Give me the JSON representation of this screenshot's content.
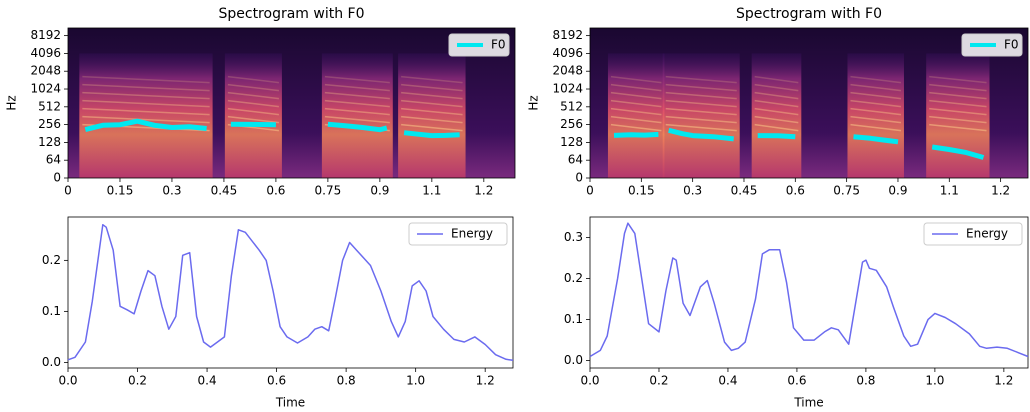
{
  "chart_data": [
    {
      "type": "spectrogram",
      "title": "Spectrogram with F0",
      "ylabel": "Hz",
      "xlim": [
        0,
        1.29
      ],
      "xticks": [
        0,
        0.15,
        0.3,
        0.45,
        0.6,
        0.75,
        0.9,
        {
          "value": 1.05,
          "label": "1.1"
        },
        1.2
      ],
      "ylim": [
        0,
        11025
      ],
      "yscale": "symlog",
      "linthresh": 64,
      "yticks": [
        0,
        64,
        128,
        256,
        512,
        1024,
        2048,
        4096,
        8192
      ],
      "legend": "upper right",
      "series": [
        {
          "name": "F0",
          "color": "#00e8f0",
          "x": [
            0.05,
            0.1,
            0.15,
            0.2,
            0.25,
            0.3,
            0.35,
            0.4,
            0.44,
            0.47,
            0.53,
            0.6,
            0.68,
            0.75,
            0.8,
            0.85,
            0.9,
            0.92,
            0.95,
            0.97,
            1.01,
            1.05,
            1.09,
            1.13
          ],
          "values": [
            211,
            249,
            255,
            292,
            249,
            229,
            235,
            220,
            null,
            260,
            258,
            255,
            null,
            260,
            245,
            229,
            210,
            225,
            null,
            187,
            176,
            167,
            168,
            172
          ]
        }
      ]
    },
    {
      "type": "spectrogram",
      "title": "Spectrogram with F0",
      "ylabel": "Hz",
      "xlim": [
        0,
        1.28
      ],
      "xticks": [
        0,
        0.15,
        0.3,
        0.45,
        0.6,
        0.75,
        0.9,
        {
          "value": 1.05,
          "label": "1.1"
        },
        1.2
      ],
      "ylim": [
        0,
        11025
      ],
      "yscale": "symlog",
      "linthresh": 64,
      "yticks": [
        0,
        64,
        128,
        256,
        512,
        1024,
        2048,
        4096,
        8192
      ],
      "legend": "upper right",
      "series": [
        {
          "name": "F0",
          "color": "#00e8f0",
          "x": [
            0.07,
            0.12,
            0.16,
            0.2,
            0.215,
            0.23,
            0.27,
            0.3,
            0.36,
            0.42,
            0.45,
            0.49,
            0.55,
            0.6,
            0.68,
            0.77,
            0.82,
            0.86,
            0.9,
            0.95,
            1.0,
            1.05,
            1.1,
            1.15
          ],
          "values": [
            168,
            172,
            170,
            175,
            null,
            205,
            180,
            167,
            160,
            147,
            null,
            167,
            166,
            160,
            null,
            160,
            150,
            140,
            131,
            null,
            107,
            97,
            86,
            71
          ]
        }
      ]
    },
    {
      "type": "line",
      "xlabel": "Time",
      "xlim": [
        0,
        1.28
      ],
      "xticks": [
        {
          "value": 0,
          "label": "0.0"
        },
        0.2,
        0.4,
        0.6,
        0.8,
        {
          "value": 1,
          "label": "1.0"
        },
        1.2
      ],
      "ylim": [
        -0.011,
        0.285
      ],
      "yticks": [
        {
          "value": 0,
          "label": "0.0"
        },
        0.1,
        0.2
      ],
      "legend": "upper right",
      "series": [
        {
          "name": "Energy",
          "color": "#6b6bef",
          "x": [
            0,
            0.02,
            0.05,
            0.07,
            0.1,
            0.11,
            0.13,
            0.15,
            0.17,
            0.19,
            0.21,
            0.23,
            0.25,
            0.27,
            0.29,
            0.31,
            0.33,
            0.35,
            0.37,
            0.39,
            0.41,
            0.43,
            0.45,
            0.47,
            0.49,
            0.51,
            0.55,
            0.57,
            0.59,
            0.61,
            0.63,
            0.66,
            0.69,
            0.71,
            0.73,
            0.75,
            0.77,
            0.79,
            0.81,
            0.83,
            0.87,
            0.9,
            0.93,
            0.95,
            0.97,
            0.99,
            1.01,
            1.03,
            1.05,
            1.08,
            1.11,
            1.14,
            1.17,
            1.2,
            1.23,
            1.26,
            1.28
          ],
          "values": [
            0.005,
            0.01,
            0.04,
            0.12,
            0.27,
            0.265,
            0.22,
            0.11,
            0.103,
            0.095,
            0.14,
            0.18,
            0.17,
            0.11,
            0.065,
            0.09,
            0.21,
            0.215,
            0.09,
            0.04,
            0.03,
            0.04,
            0.05,
            0.17,
            0.26,
            0.255,
            0.22,
            0.2,
            0.14,
            0.07,
            0.05,
            0.038,
            0.05,
            0.065,
            0.07,
            0.062,
            0.13,
            0.2,
            0.235,
            0.22,
            0.19,
            0.14,
            0.08,
            0.05,
            0.08,
            0.15,
            0.16,
            0.14,
            0.09,
            0.065,
            0.045,
            0.04,
            0.05,
            0.035,
            0.015,
            0.006,
            0.004
          ]
        }
      ]
    },
    {
      "type": "line",
      "xlabel": "Time",
      "xlim": [
        0,
        1.27
      ],
      "xticks": [
        {
          "value": 0,
          "label": "0.0"
        },
        0.2,
        0.4,
        0.6,
        0.8,
        {
          "value": 1,
          "label": "1.0"
        },
        1.2
      ],
      "ylim": [
        -0.018,
        0.35
      ],
      "yticks": [
        {
          "value": 0,
          "label": "0.0"
        },
        0.1,
        0.2,
        0.3
      ],
      "legend": "upper right",
      "series": [
        {
          "name": "Energy",
          "color": "#6b6bef",
          "x": [
            0,
            0.03,
            0.05,
            0.08,
            0.1,
            0.11,
            0.13,
            0.15,
            0.17,
            0.2,
            0.22,
            0.24,
            0.25,
            0.27,
            0.29,
            0.32,
            0.34,
            0.36,
            0.39,
            0.41,
            0.43,
            0.45,
            0.48,
            0.5,
            0.52,
            0.55,
            0.57,
            0.59,
            0.62,
            0.65,
            0.68,
            0.7,
            0.72,
            0.75,
            0.77,
            0.79,
            0.8,
            0.81,
            0.83,
            0.86,
            0.88,
            0.91,
            0.93,
            0.95,
            0.98,
            1.0,
            1.03,
            1.06,
            1.1,
            1.13,
            1.15,
            1.18,
            1.21,
            1.24,
            1.27
          ],
          "values": [
            0.01,
            0.025,
            0.06,
            0.2,
            0.31,
            0.335,
            0.31,
            0.2,
            0.09,
            0.07,
            0.17,
            0.25,
            0.245,
            0.14,
            0.11,
            0.18,
            0.195,
            0.14,
            0.045,
            0.025,
            0.03,
            0.045,
            0.15,
            0.26,
            0.27,
            0.27,
            0.19,
            0.08,
            0.05,
            0.05,
            0.07,
            0.08,
            0.075,
            0.04,
            0.14,
            0.24,
            0.245,
            0.225,
            0.22,
            0.18,
            0.13,
            0.06,
            0.035,
            0.04,
            0.1,
            0.115,
            0.105,
            0.09,
            0.065,
            0.035,
            0.03,
            0.033,
            0.03,
            0.02,
            0.01
          ]
        }
      ]
    }
  ]
}
